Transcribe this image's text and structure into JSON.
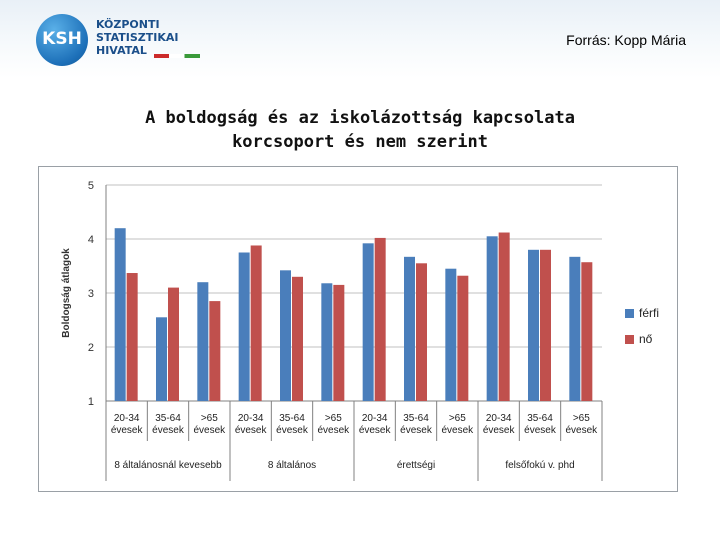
{
  "header": {
    "logo_text": [
      "KÖZPONTI",
      "STATISZTIKAI",
      "HIVATAL"
    ],
    "logo_abbr": "KSH",
    "source": "Forrás: Kopp Mária"
  },
  "title_lines": [
    "A boldogság és az iskolázottság kapcsolata",
    "korcsoport és nem szerint"
  ],
  "colors": {
    "ferfi": "#4a7ebb",
    "no": "#c0504d",
    "grid": "#c0c0c0",
    "axis": "#808080"
  },
  "chart_data": {
    "type": "bar",
    "title": "A boldogság és az iskolázottság kapcsolata korcsoport és nem szerint",
    "ylabel": "Boldogság átlagok",
    "xlabel": "",
    "ylim": [
      1,
      5
    ],
    "yticks": [
      "1",
      "2",
      "3",
      "4",
      "5"
    ],
    "legend_position": "right",
    "categories": [
      "20-34 évesek",
      "35-64 évesek",
      ">65 évesek",
      "20-34 évesek",
      "35-64 évesek",
      ">65 évesek",
      "20-34 évesek",
      "35-64 évesek",
      ">65 évesek",
      "20-34 évesek",
      "35-64 évesek",
      ">65 évesek"
    ],
    "category_lines": [
      [
        "20-34",
        "évesek"
      ],
      [
        "35-64",
        "évesek"
      ],
      [
        ">65",
        "évesek"
      ],
      [
        "20-34",
        "évesek"
      ],
      [
        "35-64",
        "évesek"
      ],
      [
        ">65",
        "évesek"
      ],
      [
        "20-34",
        "évesek"
      ],
      [
        "35-64",
        "évesek"
      ],
      [
        ">65",
        "évesek"
      ],
      [
        "20-34",
        "évesek"
      ],
      [
        "35-64",
        "évesek"
      ],
      [
        ">65",
        "évesek"
      ]
    ],
    "groups": [
      "8 általánosnál kevesebb",
      "8 általános",
      "érettségi",
      "felsőfokú v. phd"
    ],
    "series": [
      {
        "name": "férfi",
        "values": [
          4.2,
          2.55,
          3.2,
          3.75,
          3.42,
          3.18,
          3.92,
          3.67,
          3.45,
          4.05,
          3.8,
          3.67
        ]
      },
      {
        "name": "nő",
        "values": [
          3.37,
          3.1,
          2.85,
          3.88,
          3.3,
          3.15,
          4.02,
          3.55,
          3.32,
          4.12,
          3.8,
          3.57
        ]
      }
    ]
  }
}
